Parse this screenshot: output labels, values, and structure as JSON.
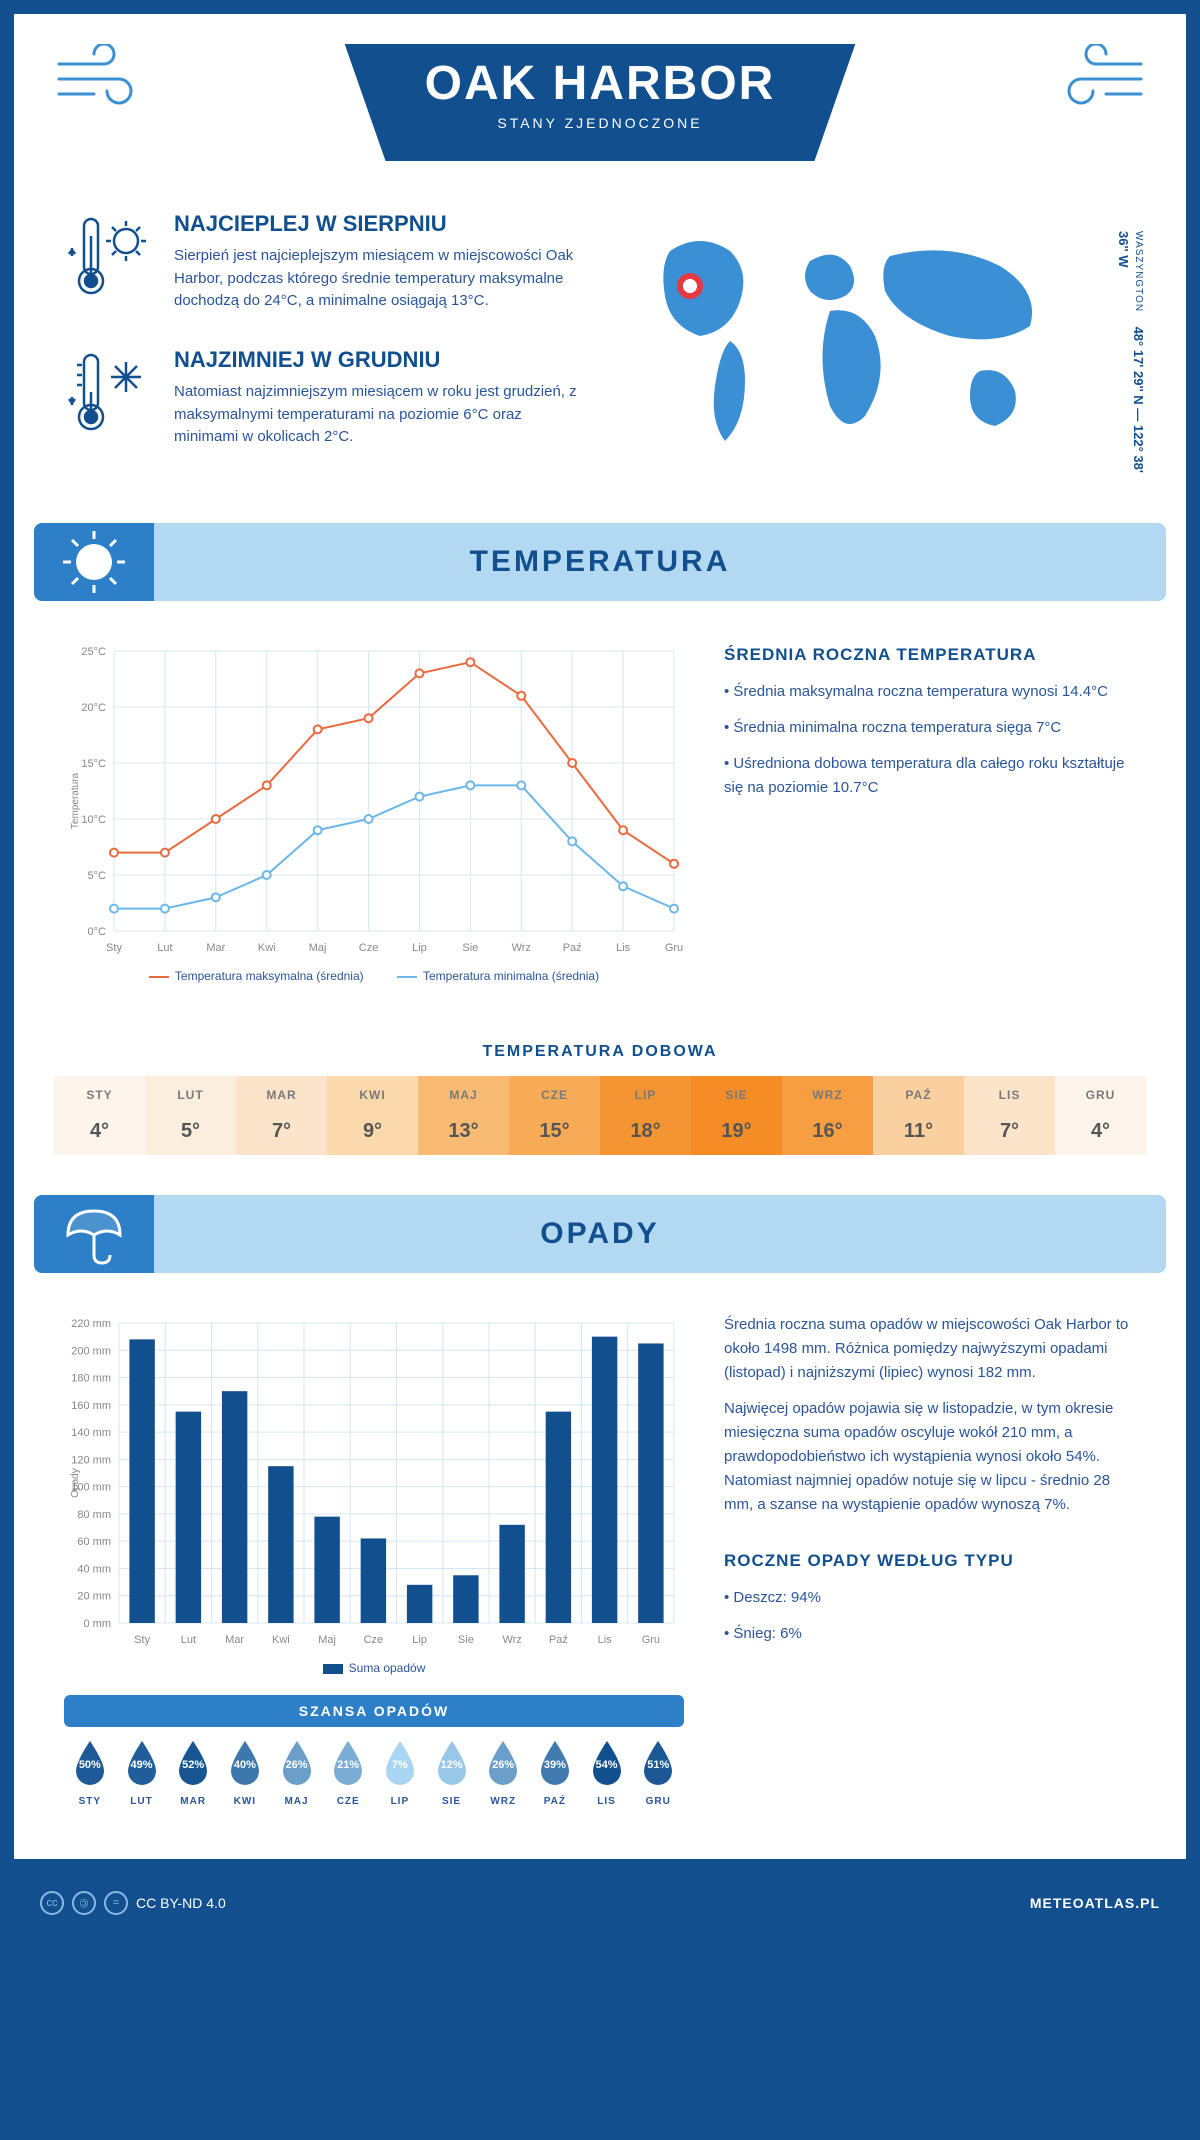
{
  "header": {
    "title": "OAK HARBOR",
    "subtitle": "STANY ZJEDNOCZONE"
  },
  "coords": {
    "lat": "48° 17' 29'' N",
    "lon": "122° 38' 36'' W",
    "region": "WASZYNGTON"
  },
  "intro": {
    "warmest": {
      "title": "NAJCIEPLEJ W SIERPNIU",
      "text": "Sierpień jest najcieplejszym miesiącem w miejscowości Oak Harbor, podczas którego średnie temperatury maksymalne dochodzą do 24°C, a minimalne osiągają 13°C."
    },
    "coldest": {
      "title": "NAJZIMNIEJ W GRUDNIU",
      "text": "Natomiast najzimniejszym miesiącem w roku jest grudzień, z maksymalnymi temperaturami na poziomie 6°C oraz minimami w okolicach 2°C."
    }
  },
  "sections": {
    "temperature": "TEMPERATURA",
    "precipitation": "OPADY"
  },
  "months": [
    "Sty",
    "Lut",
    "Mar",
    "Kwi",
    "Maj",
    "Cze",
    "Lip",
    "Sie",
    "Wrz",
    "Paź",
    "Lis",
    "Gru"
  ],
  "months_upper": [
    "STY",
    "LUT",
    "MAR",
    "KWI",
    "MAJ",
    "CZE",
    "LIP",
    "SIE",
    "WRZ",
    "PAŹ",
    "LIS",
    "GRU"
  ],
  "temp_chart": {
    "type": "line",
    "ylabel": "Temperatura",
    "ylim": [
      0,
      25
    ],
    "ytick_step": 5,
    "ytick_suffix": "°C",
    "series": [
      {
        "name": "Temperatura maksymalna (średnia)",
        "color": "#e96a3f",
        "values": [
          7,
          7,
          10,
          13,
          18,
          19,
          23,
          24,
          21,
          15,
          9,
          6
        ]
      },
      {
        "name": "Temperatura minimalna (średnia)",
        "color": "#6db7e8",
        "values": [
          2,
          2,
          3,
          5,
          9,
          10,
          12,
          13,
          13,
          8,
          4,
          2
        ]
      }
    ],
    "grid_color": "#d5e6f5",
    "background": "#ffffff",
    "marker": "circle",
    "marker_size": 4,
    "line_width": 2
  },
  "temp_text": {
    "title": "ŚREDNIA ROCZNA TEMPERATURA",
    "bullets": [
      "Średnia maksymalna roczna temperatura wynosi 14.4°C",
      "Średnia minimalna roczna temperatura sięga 7°C",
      "Uśredniona dobowa temperatura dla całego roku kształtuje się na poziomie 10.7°C"
    ]
  },
  "daily_temp": {
    "title": "TEMPERATURA DOBOWA",
    "values": [
      4,
      5,
      7,
      9,
      13,
      15,
      18,
      19,
      16,
      11,
      7,
      4
    ],
    "colors": [
      "#fdf5ec",
      "#fceedf",
      "#fbe4c9",
      "#fbd9ad",
      "#f9ba73",
      "#f7ab56",
      "#f59433",
      "#f58c26",
      "#f79d42",
      "#fbd0a0",
      "#fbe4c9",
      "#fdf5ec"
    ]
  },
  "precip_chart": {
    "type": "bar",
    "ylabel": "Opady",
    "ylim": [
      0,
      220
    ],
    "ytick_step": 20,
    "ytick_suffix": " mm",
    "bar_color": "#114f8e",
    "series_name": "Suma opadów",
    "values": [
      208,
      155,
      170,
      115,
      78,
      62,
      28,
      35,
      72,
      155,
      210,
      205
    ],
    "grid_color": "#d5e6f5",
    "background": "#ffffff",
    "bar_width": 0.55
  },
  "precip_text": {
    "p1": "Średnia roczna suma opadów w miejscowości Oak Harbor to około 1498 mm. Różnica pomiędzy najwyższymi opadami (listopad) i najniższymi (lipiec) wynosi 182 mm.",
    "p2": "Najwięcej opadów pojawia się w listopadzie, w tym okresie miesięczna suma opadów oscyluje wokół 210 mm, a prawdopodobieństwo ich wystąpienia wynosi około 54%. Natomiast najmniej opadów notuje się w lipcu - średnio 28 mm, a szanse na wystąpienie opadów wynoszą 7%.",
    "type_title": "ROCZNE OPADY WEDŁUG TYPU",
    "types": [
      "Deszcz: 94%",
      "Śnieg: 6%"
    ]
  },
  "rain_chance": {
    "title": "SZANSA OPADÓW",
    "values": [
      50,
      49,
      52,
      40,
      26,
      21,
      7,
      12,
      26,
      39,
      54,
      51
    ],
    "color_scale": {
      "low": "#a8d5f2",
      "high": "#114f8e"
    }
  },
  "footer": {
    "license": "CC BY-ND 4.0",
    "brand": "METEOATLAS.PL"
  }
}
